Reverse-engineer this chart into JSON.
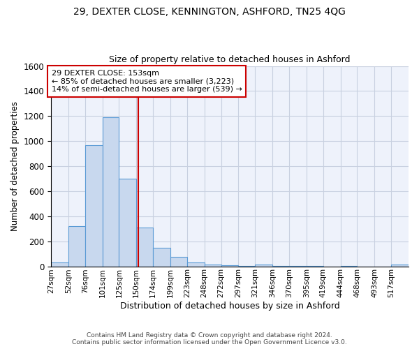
{
  "title1": "29, DEXTER CLOSE, KENNINGTON, ASHFORD, TN25 4QG",
  "title2": "Size of property relative to detached houses in Ashford",
  "xlabel": "Distribution of detached houses by size in Ashford",
  "ylabel": "Number of detached properties",
  "property_size": 153,
  "property_label": "29 DEXTER CLOSE: 153sqm",
  "annotation_line1": "← 85% of detached houses are smaller (3,223)",
  "annotation_line2": "14% of semi-detached houses are larger (539) →",
  "footer1": "Contains HM Land Registry data © Crown copyright and database right 2024.",
  "footer2": "Contains public sector information licensed under the Open Government Licence v3.0.",
  "bar_color": "#c8d8ee",
  "bar_edge_color": "#5b9bd5",
  "red_line_color": "#cc0000",
  "annotation_box_color": "#cc0000",
  "background_color": "#eef2fb",
  "grid_color": "#c8d0e0",
  "bins": [
    27,
    52,
    76,
    101,
    125,
    150,
    174,
    199,
    223,
    248,
    272,
    297,
    321,
    346,
    370,
    395,
    419,
    444,
    468,
    493,
    517,
    542
  ],
  "bin_labels": [
    "27sqm",
    "52sqm",
    "76sqm",
    "101sqm",
    "125sqm",
    "150sqm",
    "174sqm",
    "199sqm",
    "223sqm",
    "248sqm",
    "272sqm",
    "297sqm",
    "321sqm",
    "346sqm",
    "370sqm",
    "395sqm",
    "419sqm",
    "444sqm",
    "468sqm",
    "493sqm",
    "517sqm"
  ],
  "values": [
    30,
    320,
    970,
    1190,
    700,
    310,
    150,
    75,
    30,
    15,
    10,
    5,
    15,
    5,
    5,
    5,
    0,
    5,
    0,
    0,
    15
  ],
  "ylim": [
    0,
    1600
  ],
  "yticks": [
    0,
    200,
    400,
    600,
    800,
    1000,
    1200,
    1400,
    1600
  ]
}
